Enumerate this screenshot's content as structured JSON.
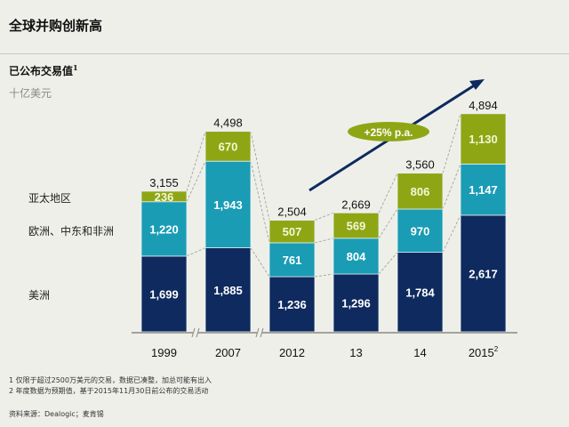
{
  "header": {
    "title": "全球并购创新高",
    "subtitle": "已公布交易值",
    "subtitle_sup": "1",
    "unit": "十亿美元"
  },
  "legend": [
    {
      "label": "亚太地区",
      "color": "#8ea614"
    },
    {
      "label": "欧洲、中东和非洲",
      "color": "#1a9cb5"
    },
    {
      "label": "美洲",
      "color": "#0e2a5e"
    }
  ],
  "chart_data": {
    "type": "bar",
    "stacked": true,
    "title": "已公布交易值",
    "ylabel": "十亿美元",
    "categories": [
      "1999",
      "2007",
      "2012",
      "13",
      "14",
      "2015"
    ],
    "category_superscripts": [
      "",
      "",
      "",
      "",
      "",
      "2"
    ],
    "series": [
      {
        "name": "美洲",
        "color": "#0e2a5e",
        "values": [
          1699,
          1885,
          1236,
          1296,
          1784,
          2617
        ]
      },
      {
        "name": "欧洲、中东和非洲",
        "color": "#1a9cb5",
        "values": [
          1220,
          1943,
          761,
          804,
          970,
          1147
        ]
      },
      {
        "name": "亚太地区",
        "color": "#8ea614",
        "values": [
          236,
          670,
          507,
          569,
          806,
          1130
        ]
      }
    ],
    "series_labels": [
      [
        "1,699",
        "1,885",
        "1,236",
        "1,296",
        "1,784",
        "2,617"
      ],
      [
        "1,220",
        "1,943",
        "761",
        "804",
        "970",
        "1,147"
      ],
      [
        "236",
        "670",
        "507",
        "569",
        "806",
        "1,130"
      ]
    ],
    "totals": [
      3155,
      4498,
      2504,
      2669,
      3560,
      4894
    ],
    "total_labels": [
      "3,155",
      "4,498",
      "2,504",
      "2,669",
      "3,560",
      "4,894"
    ],
    "axis_breaks_after": [
      "1999",
      "2007"
    ],
    "annotation": "+25% p.a.",
    "annotation_color": "#8ea614",
    "arrow_color": "#0e2a5e",
    "ylim": [
      0,
      5000
    ]
  },
  "footnotes": [
    "1 仅限于超过2500万美元的交易，数据已凑整，加总可能有出入",
    "2 年度数据为预期值，基于2015年11月30日前公布的交易活动"
  ],
  "source": "资料来源：Dealogic；麦肯锡"
}
